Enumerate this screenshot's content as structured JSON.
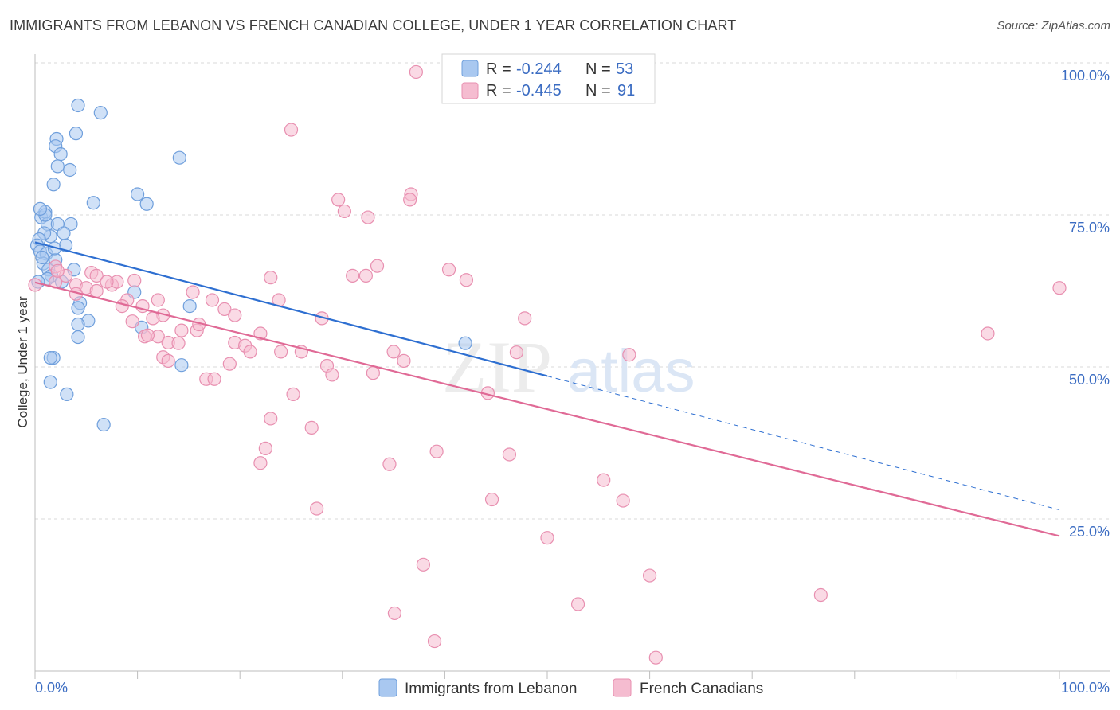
{
  "title": "IMMIGRANTS FROM LEBANON VS FRENCH CANADIAN COLLEGE, UNDER 1 YEAR CORRELATION CHART",
  "source": "Source: ZipAtlas.com",
  "watermark": {
    "zip": "ZIP",
    "atlas": "atlas"
  },
  "colors": {
    "blue_fill": "#a9c8f0",
    "blue_stroke": "#6f9fdc",
    "blue_line": "#2e6fd1",
    "pink_fill": "#f5bcd0",
    "pink_stroke": "#e88fb0",
    "pink_line": "#e06a96",
    "grid": "#d9d9d9",
    "axis_text": "#3b6cc2"
  },
  "legend": {
    "rows": [
      {
        "r_label": "R = ",
        "r_value": "-0.244",
        "n_label": "N = ",
        "n_value": "53"
      },
      {
        "r_label": "R = ",
        "r_value": "-0.445",
        "n_label": "N = ",
        "n_value": "91"
      }
    ]
  },
  "bottom_legend": [
    "Immigrants from Lebanon",
    "French Canadians"
  ],
  "chart_data": {
    "type": "scatter",
    "title": "IMMIGRANTS FROM LEBANON VS FRENCH CANADIAN COLLEGE, UNDER 1 YEAR CORRELATION CHART",
    "xlabel": "",
    "ylabel": "College, Under 1 year",
    "xlim": [
      0,
      100
    ],
    "ylim": [
      0,
      100
    ],
    "x_tick_labels": [
      "0.0%",
      "100.0%"
    ],
    "y_tick_labels": [
      "100.0%",
      "75.0%",
      "50.0%",
      "25.0%"
    ],
    "y_tick_values": [
      100,
      75,
      50,
      25
    ],
    "grid": true,
    "legend_position": "top-center",
    "series": [
      {
        "name": "Immigrants from Lebanon",
        "color": "#a9c8f0",
        "trend": {
          "x": [
            0,
            50
          ],
          "y": [
            70.5,
            48.5
          ],
          "dashed_to": [
            100,
            26.5
          ]
        },
        "points": [
          [
            4.2,
            93.0
          ],
          [
            4.0,
            88.4
          ],
          [
            2.1,
            87.5
          ],
          [
            2.0,
            86.3
          ],
          [
            2.5,
            85.0
          ],
          [
            2.2,
            83.0
          ],
          [
            3.4,
            82.4
          ],
          [
            1.8,
            80.0
          ],
          [
            0.6,
            74.6
          ],
          [
            1.0,
            75.5
          ],
          [
            1.2,
            73.5
          ],
          [
            1.5,
            71.5
          ],
          [
            0.9,
            72.0
          ],
          [
            0.4,
            71.0
          ],
          [
            0.2,
            70.0
          ],
          [
            0.5,
            69.0
          ],
          [
            1.1,
            68.6
          ],
          [
            0.8,
            67.0
          ],
          [
            1.3,
            66.0
          ],
          [
            2.0,
            67.6
          ],
          [
            1.6,
            65.0
          ],
          [
            1.2,
            64.5
          ],
          [
            0.3,
            64.0
          ],
          [
            2.2,
            73.5
          ],
          [
            3.0,
            70.0
          ],
          [
            3.5,
            73.5
          ],
          [
            5.7,
            77.0
          ],
          [
            6.4,
            91.8
          ],
          [
            10.0,
            78.4
          ],
          [
            10.9,
            76.8
          ],
          [
            14.1,
            84.4
          ],
          [
            4.4,
            60.5
          ],
          [
            4.2,
            59.7
          ],
          [
            5.2,
            57.6
          ],
          [
            4.2,
            57.0
          ],
          [
            4.2,
            54.9
          ],
          [
            1.8,
            51.5
          ],
          [
            1.5,
            51.5
          ],
          [
            1.5,
            47.5
          ],
          [
            3.1,
            45.5
          ],
          [
            6.7,
            40.5
          ],
          [
            9.7,
            62.3
          ],
          [
            10.4,
            56.5
          ],
          [
            15.1,
            60.0
          ],
          [
            14.3,
            50.3
          ],
          [
            42.0,
            53.9
          ],
          [
            1.0,
            75.0
          ],
          [
            0.5,
            76.0
          ],
          [
            2.8,
            72.0
          ],
          [
            1.9,
            69.5
          ],
          [
            0.7,
            68.0
          ],
          [
            3.8,
            66.0
          ],
          [
            2.6,
            64.0
          ]
        ]
      },
      {
        "name": "French Canadians",
        "color": "#f5bcd0",
        "trend": {
          "x": [
            0,
            100
          ],
          "y": [
            63.9,
            22.2
          ]
        },
        "points": [
          [
            37.2,
            98.5
          ],
          [
            25.0,
            89.0
          ],
          [
            36.7,
            78.4
          ],
          [
            36.6,
            77.5
          ],
          [
            29.6,
            77.5
          ],
          [
            30.2,
            75.6
          ],
          [
            32.5,
            74.6
          ],
          [
            33.4,
            66.6
          ],
          [
            31.0,
            65.0
          ],
          [
            32.3,
            65.0
          ],
          [
            23.0,
            64.7
          ],
          [
            40.4,
            66.0
          ],
          [
            42.1,
            64.3
          ],
          [
            100.0,
            63.0
          ],
          [
            0.0,
            63.5
          ],
          [
            2.0,
            64.0
          ],
          [
            4.0,
            63.5
          ],
          [
            5.0,
            63.0
          ],
          [
            6.0,
            62.5
          ],
          [
            7.5,
            63.5
          ],
          [
            8.0,
            64.0
          ],
          [
            9.7,
            64.2
          ],
          [
            5.5,
            65.5
          ],
          [
            6.0,
            65.0
          ],
          [
            7.0,
            64.0
          ],
          [
            3.0,
            65.0
          ],
          [
            2.0,
            66.5
          ],
          [
            2.2,
            65.8
          ],
          [
            15.4,
            62.3
          ],
          [
            9.0,
            61.0
          ],
          [
            10.5,
            60.0
          ],
          [
            12.0,
            61.0
          ],
          [
            17.3,
            61.0
          ],
          [
            18.5,
            59.5
          ],
          [
            23.8,
            61.0
          ],
          [
            19.5,
            58.5
          ],
          [
            12.5,
            58.5
          ],
          [
            9.5,
            57.5
          ],
          [
            14.3,
            56.0
          ],
          [
            15.8,
            56.0
          ],
          [
            16.0,
            57.0
          ],
          [
            12.0,
            55.0
          ],
          [
            10.7,
            55.0
          ],
          [
            11.0,
            55.2
          ],
          [
            13.0,
            54.0
          ],
          [
            14.0,
            53.9
          ],
          [
            22.0,
            55.5
          ],
          [
            19.5,
            54.0
          ],
          [
            20.5,
            53.5
          ],
          [
            21.0,
            52.5
          ],
          [
            24.0,
            52.5
          ],
          [
            26.0,
            52.5
          ],
          [
            28.0,
            58.0
          ],
          [
            35.0,
            52.5
          ],
          [
            36.0,
            51.0
          ],
          [
            47.8,
            58.0
          ],
          [
            47.0,
            52.4
          ],
          [
            58.0,
            52.0
          ],
          [
            93.0,
            55.5
          ],
          [
            12.5,
            51.6
          ],
          [
            13.0,
            51.0
          ],
          [
            19.0,
            50.5
          ],
          [
            28.5,
            50.2
          ],
          [
            29.0,
            48.7
          ],
          [
            33.0,
            49.0
          ],
          [
            16.7,
            48.0
          ],
          [
            17.5,
            48.0
          ],
          [
            25.2,
            45.5
          ],
          [
            44.2,
            45.7
          ],
          [
            23.0,
            41.5
          ],
          [
            27.0,
            40.0
          ],
          [
            22.5,
            36.6
          ],
          [
            22.0,
            34.2
          ],
          [
            34.6,
            34.0
          ],
          [
            39.2,
            36.1
          ],
          [
            46.3,
            35.6
          ],
          [
            55.5,
            31.4
          ],
          [
            27.5,
            26.7
          ],
          [
            44.6,
            28.2
          ],
          [
            57.4,
            28.0
          ],
          [
            50.0,
            21.9
          ],
          [
            37.9,
            17.5
          ],
          [
            35.1,
            9.5
          ],
          [
            39.0,
            4.9
          ],
          [
            53.0,
            11.0
          ],
          [
            60.0,
            15.7
          ],
          [
            76.7,
            12.5
          ],
          [
            60.6,
            2.2
          ],
          [
            4.0,
            62.0
          ],
          [
            8.5,
            60.0
          ],
          [
            11.5,
            58.0
          ]
        ]
      }
    ]
  }
}
